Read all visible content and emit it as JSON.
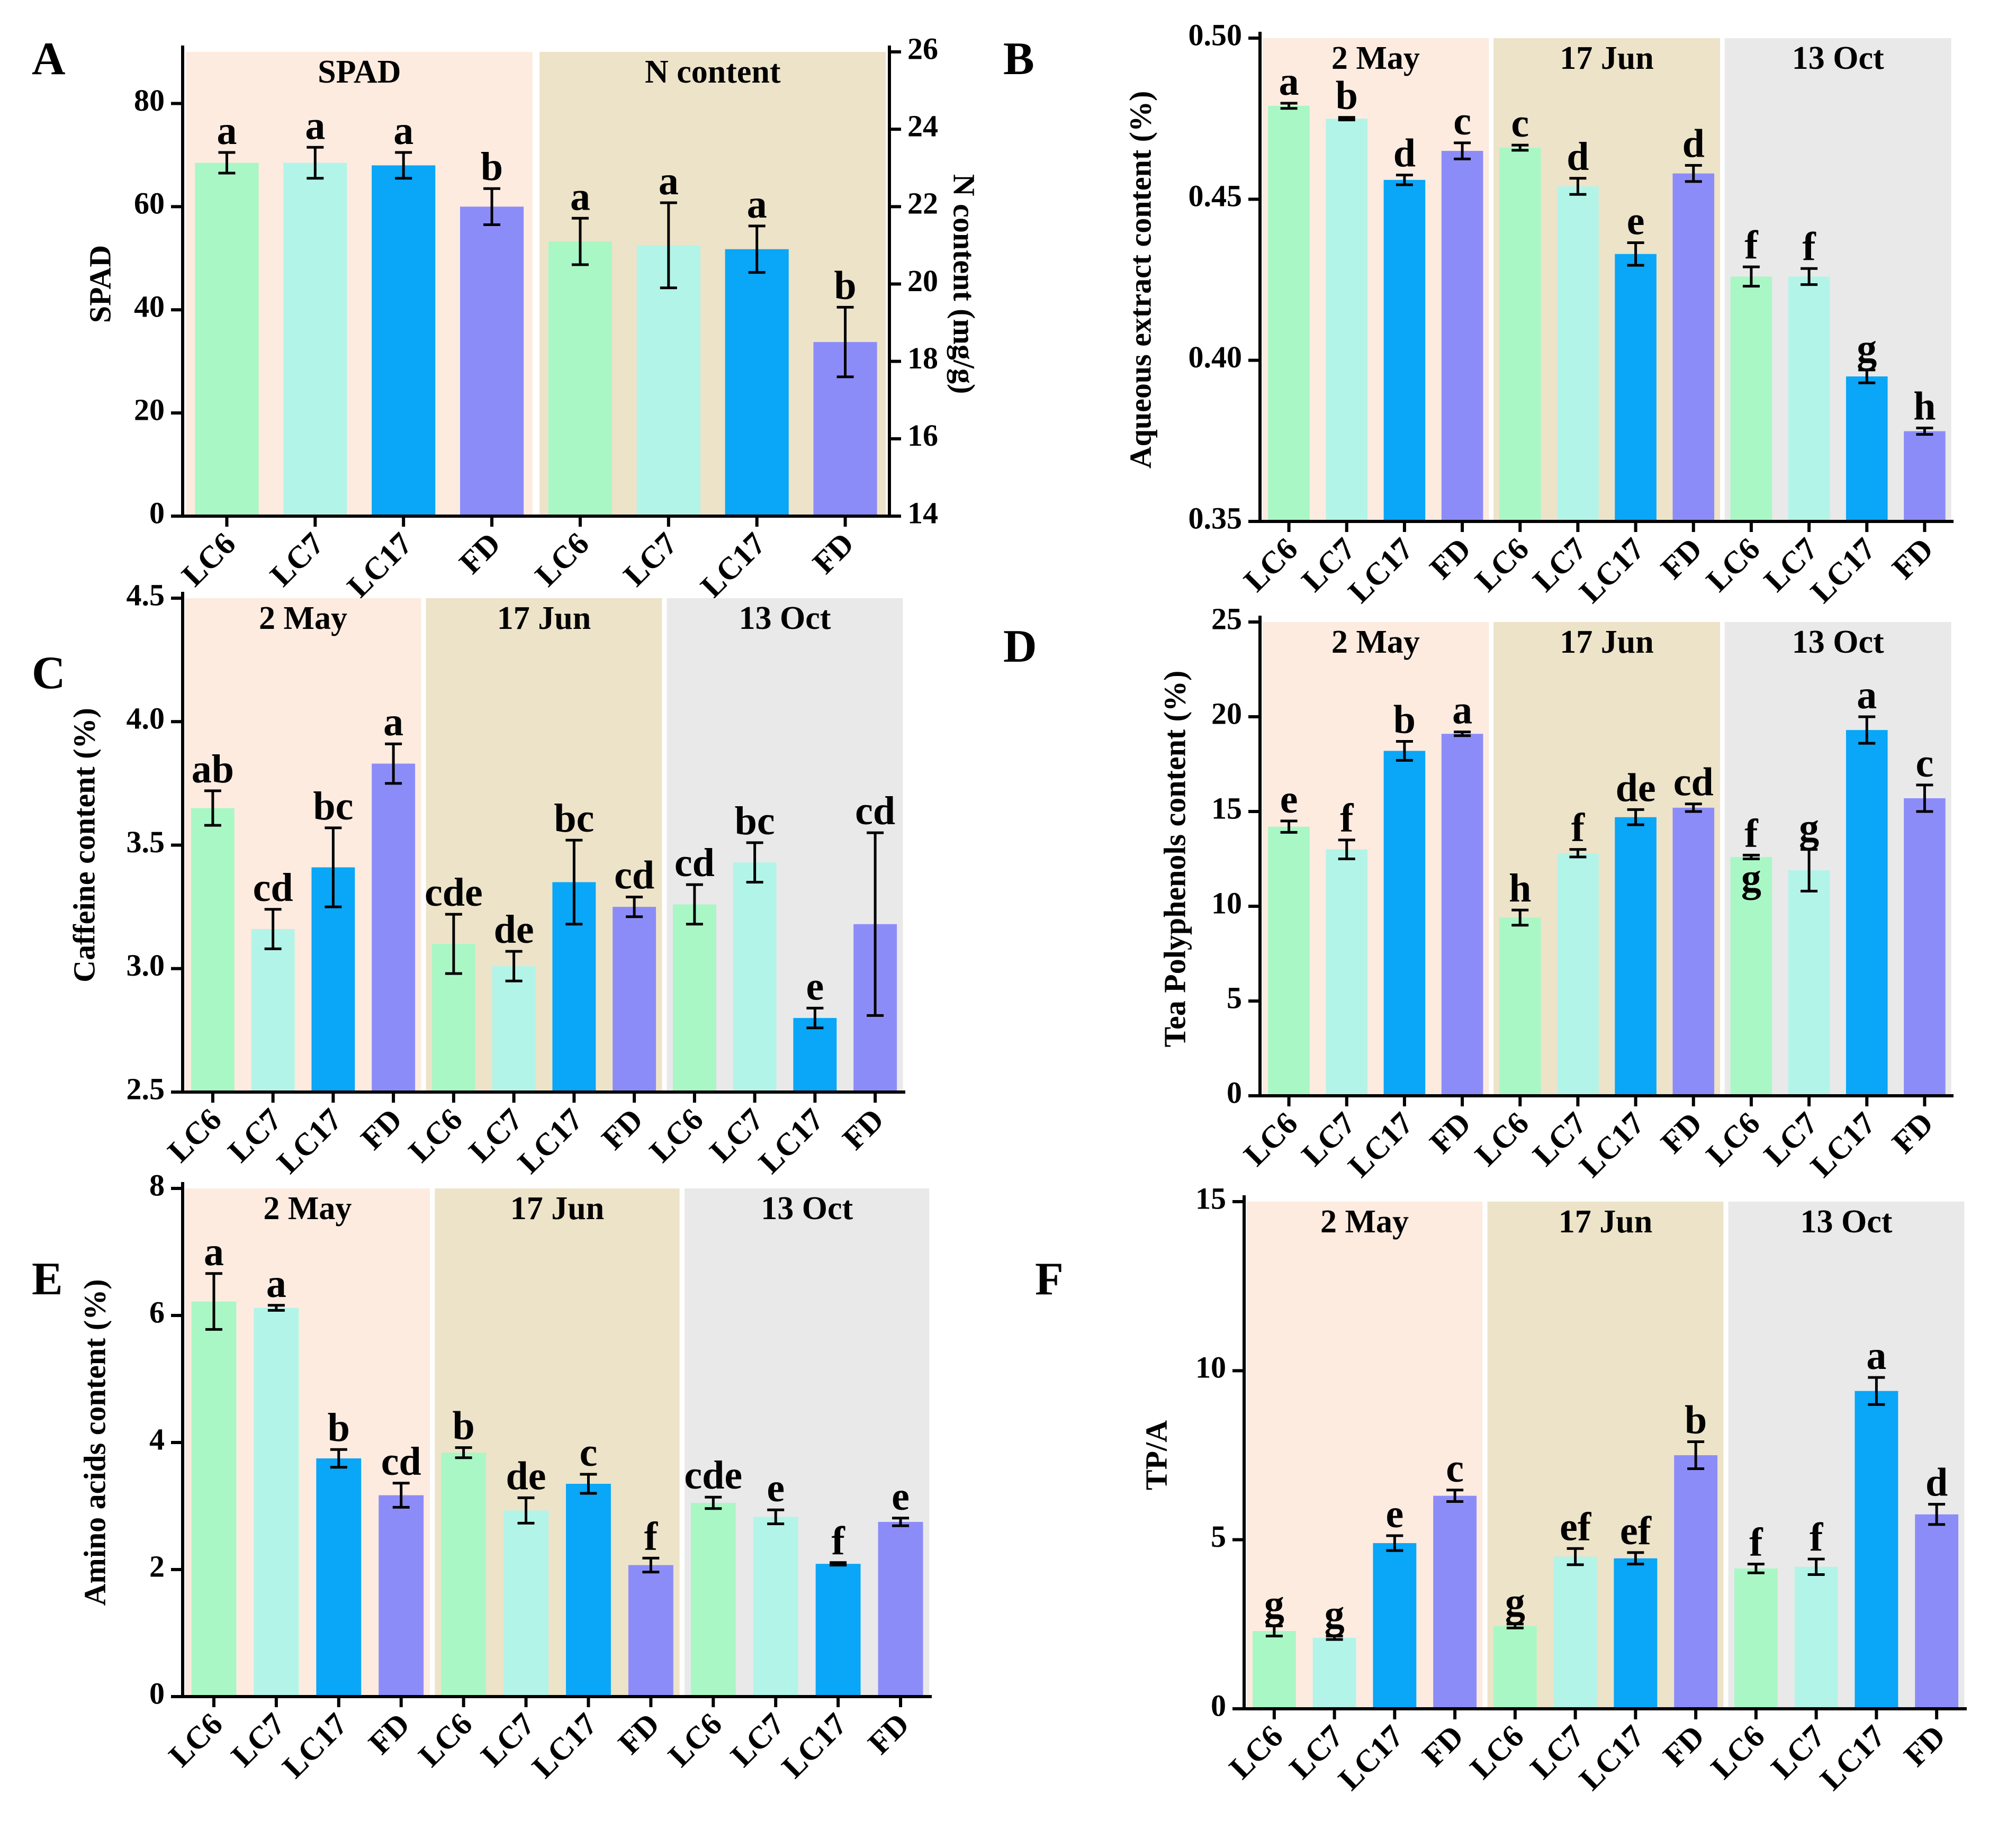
{
  "figure": {
    "categories": [
      "LC6",
      "LC7",
      "LC17",
      "FD"
    ],
    "colors": {
      "LC6": "#aaf7c6",
      "LC7": "#b3f4e8",
      "LC17": "#0aa6f7",
      "FD": "#8c8cf9",
      "bg_0": "#fdebe0",
      "bg_1": "#ede3c8",
      "bg_2": "#e9e9e9"
    }
  },
  "chart_data": [
    {
      "panel": "A",
      "type": "bar",
      "title": "",
      "xlabel": "",
      "ylabel": "SPAD",
      "y2label": "N content (mg/g)",
      "ylim": [
        0,
        90
      ],
      "yticks": [
        0,
        20,
        40,
        60,
        80
      ],
      "y2lim": [
        14,
        26
      ],
      "y2ticks": [
        14,
        16,
        18,
        20,
        22,
        24,
        26
      ],
      "categories": [
        "LC6",
        "LC7",
        "LC17",
        "FD",
        "LC6",
        "LC7",
        "LC17",
        "FD"
      ],
      "groups": [
        {
          "label": "SPAD",
          "axis": "left",
          "values": [
            68.5,
            68.5,
            68,
            60
          ],
          "errors": [
            2,
            3,
            2.5,
            3.5
          ],
          "letters": [
            "a",
            "a",
            "a",
            "b"
          ]
        },
        {
          "label": "N content",
          "axis": "right",
          "values": [
            21.1,
            21.0,
            20.9,
            18.5
          ],
          "errors": [
            0.6,
            1.1,
            0.6,
            0.9
          ],
          "letters": [
            "a",
            "a",
            "a",
            "b"
          ]
        }
      ]
    },
    {
      "panel": "B",
      "type": "bar",
      "title": "",
      "xlabel": "",
      "ylabel": "Aqueous extract content (%)",
      "ylim": [
        0.35,
        0.5
      ],
      "yticks": [
        0.35,
        0.4,
        0.45,
        0.5
      ],
      "ytick_labels": [
        "0.35",
        "0.40",
        "0.45",
        "0.50"
      ],
      "categories": [
        "LC6",
        "LC7",
        "LC17",
        "FD",
        "LC6",
        "LC7",
        "LC17",
        "FD",
        "LC6",
        "LC7",
        "LC17",
        "FD"
      ],
      "groups": [
        {
          "label": "2 May",
          "values": [
            0.479,
            0.475,
            0.456,
            0.465
          ],
          "errors": [
            0.0008,
            0.0004,
            0.0015,
            0.0025
          ],
          "letters": [
            "a",
            "b",
            "d",
            "c"
          ]
        },
        {
          "label": "17 Jun",
          "values": [
            0.466,
            0.454,
            0.433,
            0.458
          ],
          "errors": [
            0.0008,
            0.0025,
            0.0035,
            0.0025
          ],
          "letters": [
            "c",
            "d",
            "e",
            "d"
          ]
        },
        {
          "label": "13 Oct",
          "values": [
            0.426,
            0.426,
            0.395,
            0.378
          ],
          "errors": [
            0.003,
            0.0025,
            0.002,
            0.001
          ],
          "letters": [
            "f",
            "f",
            "g",
            "h"
          ]
        }
      ]
    },
    {
      "panel": "C",
      "type": "bar",
      "title": "",
      "xlabel": "",
      "ylabel": "Caffeine content (%)",
      "ylim": [
        2.5,
        4.5
      ],
      "yticks": [
        2.5,
        3.0,
        3.5,
        4.0,
        4.5
      ],
      "ytick_labels": [
        "2.5",
        "3.0",
        "3.5",
        "4.0",
        "4.5"
      ],
      "categories": [
        "LC6",
        "LC7",
        "LC17",
        "FD",
        "LC6",
        "LC7",
        "LC17",
        "FD",
        "LC6",
        "LC7",
        "LC17",
        "FD"
      ],
      "groups": [
        {
          "label": "2 May",
          "values": [
            3.65,
            3.16,
            3.41,
            3.83
          ],
          "errors": [
            0.07,
            0.08,
            0.16,
            0.08
          ],
          "letters": [
            "ab",
            "cd",
            "bc",
            "a"
          ]
        },
        {
          "label": "17 Jun",
          "values": [
            3.1,
            3.01,
            3.35,
            3.25
          ],
          "errors": [
            0.12,
            0.06,
            0.17,
            0.04
          ],
          "letters": [
            "cde",
            "de",
            "bc",
            "cd"
          ]
        },
        {
          "label": "13 Oct",
          "values": [
            3.26,
            3.43,
            2.8,
            3.18
          ],
          "errors": [
            0.08,
            0.08,
            0.04,
            0.37
          ],
          "letters": [
            "cd",
            "bc",
            "e",
            "cd"
          ]
        }
      ]
    },
    {
      "panel": "D",
      "type": "bar",
      "title": "",
      "xlabel": "",
      "ylabel": "Tea Polyphenols content (%)",
      "ylim": [
        0,
        25
      ],
      "yticks": [
        0,
        5,
        10,
        15,
        20,
        25
      ],
      "categories": [
        "LC6",
        "LC7",
        "LC17",
        "FD",
        "LC6",
        "LC7",
        "LC17",
        "FD",
        "LC6",
        "LC7",
        "LC17",
        "FD"
      ],
      "groups": [
        {
          "label": "2 May",
          "values": [
            14.2,
            13.0,
            18.2,
            19.1
          ],
          "errors": [
            0.3,
            0.5,
            0.5,
            0.1
          ],
          "letters": [
            "e",
            "f",
            "b",
            "a"
          ]
        },
        {
          "label": "17 Jun",
          "values": [
            9.4,
            12.8,
            14.7,
            15.2
          ],
          "errors": [
            0.4,
            0.2,
            0.4,
            0.2
          ],
          "letters": [
            "h",
            "f",
            "de",
            "cd"
          ]
        },
        {
          "label": "13 Oct",
          "values": [
            12.6,
            11.9,
            19.3,
            15.7
          ],
          "errors": [
            0.1,
            1.1,
            0.7,
            0.7
          ],
          "letters": [
            "f",
            "g",
            "a",
            "c"
          ]
        }
      ],
      "annotations": [
        "g"
      ]
    },
    {
      "panel": "E",
      "type": "bar",
      "title": "",
      "xlabel": "",
      "ylabel": "Amino acids content (%)",
      "ylim": [
        0,
        8
      ],
      "yticks": [
        0,
        2,
        4,
        6,
        8
      ],
      "categories": [
        "LC6",
        "LC7",
        "LC17",
        "FD",
        "LC6",
        "LC7",
        "LC17",
        "FD",
        "LC6",
        "LC7",
        "LC17",
        "FD"
      ],
      "groups": [
        {
          "label": "2 May",
          "values": [
            6.22,
            6.12,
            3.75,
            3.17
          ],
          "errors": [
            0.44,
            0.04,
            0.14,
            0.19
          ],
          "letters": [
            "a",
            "a",
            "b",
            "cd"
          ]
        },
        {
          "label": "17 Jun",
          "values": [
            3.84,
            2.93,
            3.35,
            2.07
          ],
          "errors": [
            0.08,
            0.2,
            0.15,
            0.11
          ],
          "letters": [
            "b",
            "de",
            "c",
            "f"
          ]
        },
        {
          "label": "13 Oct",
          "values": [
            3.05,
            2.83,
            2.09,
            2.75
          ],
          "errors": [
            0.09,
            0.11,
            0.02,
            0.06
          ],
          "letters": [
            "cde",
            "e",
            "f",
            "e"
          ]
        }
      ]
    },
    {
      "panel": "F",
      "type": "bar",
      "title": "",
      "xlabel": "",
      "ylabel": "TP/A",
      "ylim": [
        0,
        15
      ],
      "yticks": [
        0,
        5,
        10,
        15
      ],
      "categories": [
        "LC6",
        "LC7",
        "LC17",
        "FD",
        "LC6",
        "LC7",
        "LC17",
        "FD",
        "LC6",
        "LC7",
        "LC17",
        "FD"
      ],
      "groups": [
        {
          "label": "2 May",
          "values": [
            2.3,
            2.1,
            4.9,
            6.3
          ],
          "errors": [
            0.15,
            0.05,
            0.22,
            0.17
          ],
          "letters": [
            "g",
            "g",
            "e",
            "c"
          ]
        },
        {
          "label": "17 Jun",
          "values": [
            2.45,
            4.5,
            4.45,
            7.5
          ],
          "errors": [
            0.06,
            0.24,
            0.17,
            0.4
          ],
          "letters": [
            "g",
            "ef",
            "ef",
            "b"
          ]
        },
        {
          "label": "13 Oct",
          "values": [
            4.15,
            4.2,
            9.4,
            5.75
          ],
          "errors": [
            0.13,
            0.23,
            0.4,
            0.3
          ],
          "letters": [
            "f",
            "f",
            "a",
            "d"
          ]
        }
      ]
    }
  ]
}
